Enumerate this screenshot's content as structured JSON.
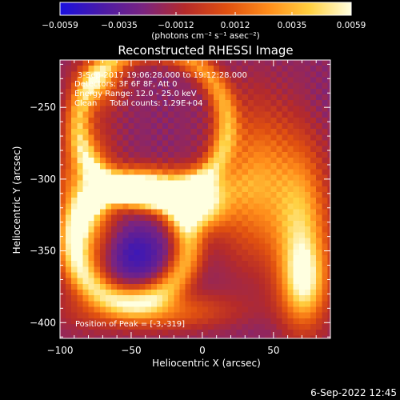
{
  "chart_data": {
    "type": "heatmap",
    "title": "Reconstructed RHESSI Image",
    "xlabel": "Heliocentric X (arcsec)",
    "ylabel": "Heliocentric Y (arcsec)",
    "xlim": [
      -100,
      90
    ],
    "ylim": [
      -411,
      -217
    ],
    "x_ticks": [
      -100,
      -50,
      0,
      50
    ],
    "y_ticks": [
      -250,
      -300,
      -350,
      -400
    ],
    "x_tick_labels": [
      "−100",
      "−50",
      "0",
      "50"
    ],
    "y_tick_labels": [
      "−250",
      "−300",
      "−350",
      "−400"
    ],
    "colorbar": {
      "min": -0.0059,
      "max": 0.0059,
      "ticks": [
        -0.0059,
        -0.0035,
        -0.0012,
        0.0012,
        0.0035,
        0.0059
      ],
      "tick_labels": [
        "−0.0059",
        "−0.0035",
        "−0.0012",
        "0.0012",
        "0.0035",
        "0.0059"
      ],
      "unit_label": "(photons cm⁻² s⁻¹ asec⁻²)",
      "colors": [
        "#1a10e0",
        "#4a1aa8",
        "#7a2480",
        "#b52a2a",
        "#e05010",
        "#ff8c1a",
        "#ffd040",
        "#ffffe0"
      ]
    },
    "annotations": {
      "line1": "3-Sep-2017 19:06:28.000 to 19:12:28.000",
      "line2": "Detectors: 3F 6F 8F, Att 0",
      "line3": "Energy Range: 12.0 - 25.0 keV",
      "line4": "Clean     Total counts: 1.29E+04",
      "peak": "Position of Peak = [-3,-319]"
    },
    "peak": {
      "x": -3,
      "y": -319,
      "value": 0.0059
    },
    "features": [
      {
        "kind": "ring",
        "cx": -50,
        "cy": -345,
        "r": 40,
        "width": 15,
        "value": 0.0035
      },
      {
        "kind": "ring",
        "cx": -35,
        "cy": -262,
        "r": 52,
        "width": 12,
        "value": 0.0026
      },
      {
        "kind": "blob",
        "x": -3,
        "y": -319,
        "sx": 13,
        "sy": 11,
        "value": 0.0059
      },
      {
        "kind": "blob",
        "x": -28,
        "y": -305,
        "sx": 30,
        "sy": 9,
        "value": 0.0034
      },
      {
        "kind": "blob",
        "x": -82,
        "y": -318,
        "sx": 14,
        "sy": 38,
        "value": 0.003
      },
      {
        "kind": "blob",
        "x": 38,
        "y": -303,
        "sx": 20,
        "sy": 36,
        "value": 0.0028
      },
      {
        "kind": "blob",
        "x": 70,
        "y": -340,
        "sx": 13,
        "sy": 40,
        "value": 0.0036
      },
      {
        "kind": "blob",
        "x": 72,
        "y": -372,
        "sx": 10,
        "sy": 18,
        "value": 0.0026
      },
      {
        "kind": "blob",
        "x": -32,
        "y": -392,
        "sx": 35,
        "sy": 9,
        "value": 0.0018
      },
      {
        "kind": "blob",
        "x": -72,
        "y": -232,
        "sx": 12,
        "sy": 12,
        "value": 0.0016
      },
      {
        "kind": "blob",
        "x": -44,
        "y": -278,
        "sx": 11,
        "sy": 11,
        "value": -0.002
      },
      {
        "kind": "blob",
        "x": -48,
        "y": -352,
        "sx": 16,
        "sy": 14,
        "value": -0.0047
      },
      {
        "kind": "blob",
        "x": 25,
        "y": -238,
        "sx": 14,
        "sy": 12,
        "value": -0.0018
      },
      {
        "kind": "blob",
        "x": 88,
        "y": -245,
        "sx": 10,
        "sy": 12,
        "value": -0.0022
      },
      {
        "kind": "blob",
        "x": 50,
        "y": -405,
        "sx": 20,
        "sy": 8,
        "value": -0.0022
      }
    ],
    "background": -0.002,
    "grid": false
  },
  "footer": {
    "date_stamp": "6-Sep-2022 12:45"
  }
}
